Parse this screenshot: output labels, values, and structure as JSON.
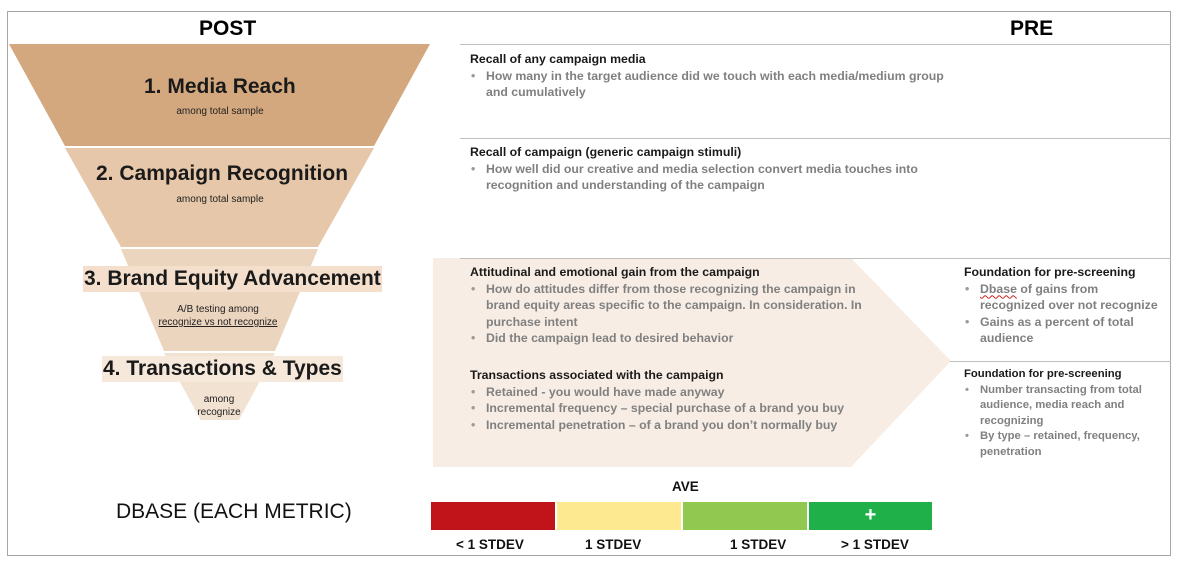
{
  "headers": {
    "post": "POST",
    "pre": "PRE"
  },
  "colors": {
    "stage1": "#d4a87e",
    "stage2": "#e6c7a9",
    "stage3": "#ecd5bf",
    "stage4": "#f2e2d2",
    "arrow": "#f8ede4",
    "red": "#c0141a",
    "yellow": "#fde98f",
    "lightgreen": "#91c84f",
    "green": "#1fb04a"
  },
  "funnel": [
    {
      "title": "1. Media Reach",
      "sub": "among total sample"
    },
    {
      "title": "2. Campaign Recognition",
      "sub": "among total sample"
    },
    {
      "title": "3. Brand Equity Advancement",
      "sub_line1": "A/B testing among",
      "sub_line2": "recognize vs not recognize"
    },
    {
      "title": "4. Transactions & Types",
      "sub_line1": "among",
      "sub_line2": "recognize"
    }
  ],
  "descriptions": [
    {
      "head": "Recall of any campaign media",
      "bullets": [
        "How many in the target audience did we touch with each media/medium group and cumulatively"
      ]
    },
    {
      "head": "Recall of campaign (generic campaign stimuli)",
      "bullets": [
        "How well did our creative and media selection convert media touches into recognition and understanding of the campaign"
      ]
    },
    {
      "head": "Attitudinal and emotional gain from the campaign",
      "bullets": [
        "How do attitudes differ from those recognizing the campaign in brand equity areas specific to the campaign. In consideration. In purchase intent",
        "Did the campaign lead to desired behavior"
      ]
    },
    {
      "head": "Transactions associated with the campaign",
      "bullets": [
        "Retained  - you would have made anyway",
        "Incremental frequency – special purchase of a brand you buy",
        "Incremental penetration – of a brand you don’t normally buy"
      ]
    }
  ],
  "pre_boxes": [
    {
      "head": "Foundation for pre-screening",
      "bullet1_word": "Dbase",
      "bullet1_rest": " of gains from recognized over not recognize",
      "bullet2": "Gains as a percent of total audience"
    },
    {
      "head": "Foundation for pre-screening",
      "bullets": [
        "Number transacting from total audience, media reach and recognizing",
        "By type – retained, frequency, penetration"
      ]
    }
  ],
  "dbase": {
    "label": "DBASE (EACH METRIC)",
    "ave": "AVE",
    "plus": "+",
    "labels": [
      "< 1 STDEV",
      "1 STDEV",
      "1 STDEV",
      "> 1 STDEV"
    ]
  }
}
